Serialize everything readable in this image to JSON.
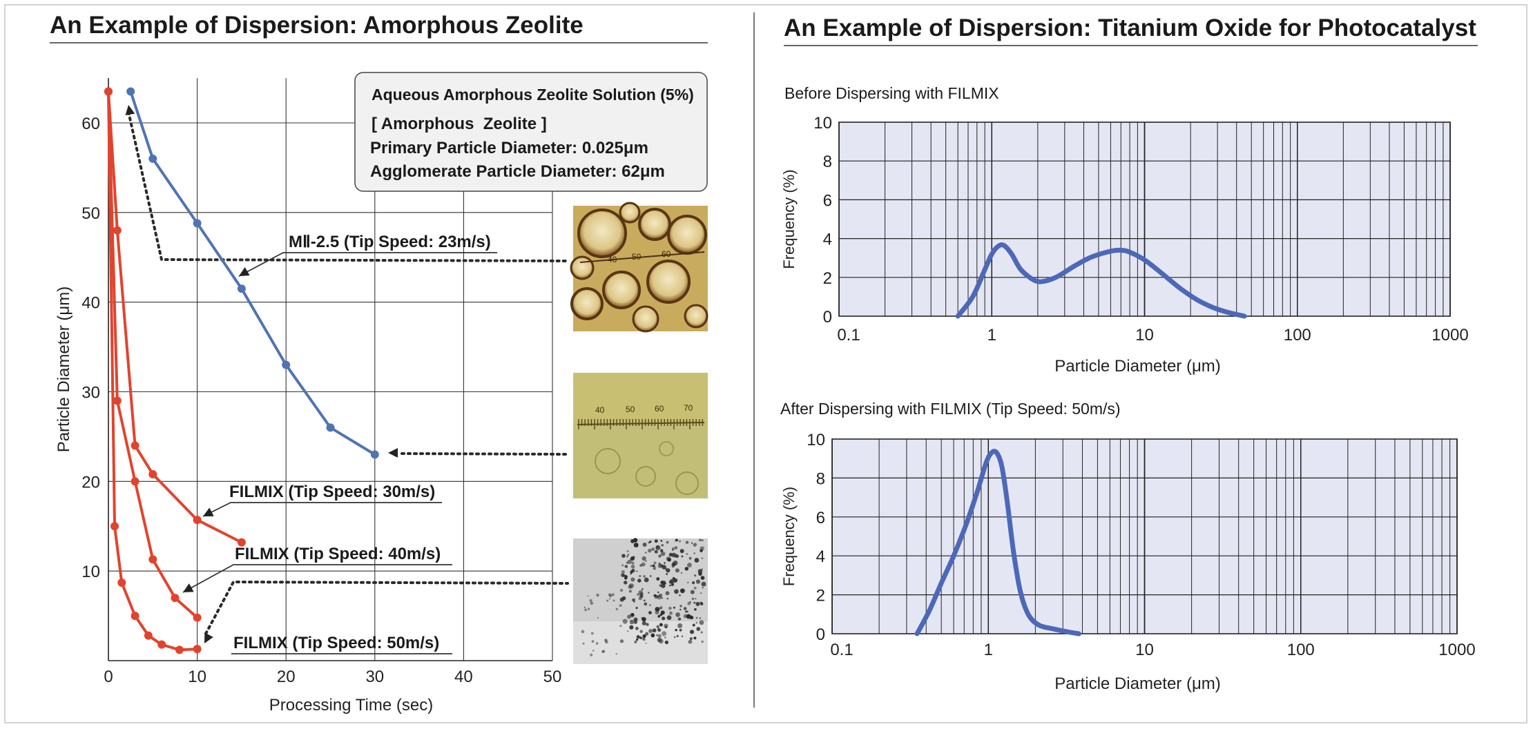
{
  "left": {
    "title": "An Example of Dispersion: Amorphous Zeolite",
    "info_box": {
      "heading": "Aqueous Amorphous Zeolite Solution (5%)",
      "material": "[ Amorphous  Zeolite ]",
      "primary": "Primary Particle Diameter: 0.025μm",
      "agglomerate": "Agglomerate Particle Diameter: 62μm"
    },
    "photo_scale_1": [
      "40",
      "50",
      "60"
    ],
    "photo_scale_2": [
      "40",
      "50",
      "60",
      "70"
    ]
  },
  "right": {
    "title": "An Example of Dispersion: Titanium Oxide for Photocatalyst",
    "top_subtitle": "Before Dispersing with FILMIX",
    "bottom_subtitle": "After Dispersing with FILMIX (Tip Speed: 50m/s)"
  },
  "colors": {
    "blue": "#4f74b4",
    "red": "#e2432d",
    "curve": "#4d68b8",
    "plot_bg": "#e4e7f3",
    "grid": "#202020",
    "dots": "#2a2a2a"
  },
  "chart_data": [
    {
      "type": "line",
      "xlabel": "Processing Time (sec)",
      "ylabel": "Particle Diameter (μm)",
      "xlim": [
        0,
        50
      ],
      "ylim": [
        0,
        65
      ],
      "xticks": [
        0,
        10,
        20,
        30,
        40,
        50
      ],
      "yticks": [
        10,
        20,
        30,
        40,
        50,
        60
      ],
      "grid": true,
      "series": [
        {
          "name": "MⅡ-2.5 (Tip Speed: 23m/s)",
          "color": "#4f74b4",
          "x": [
            2.5,
            5,
            10,
            15,
            20,
            25,
            30
          ],
          "y": [
            63.5,
            56,
            48.8,
            41.5,
            33,
            26,
            23
          ]
        },
        {
          "name": "FILMIX (Tip Speed: 30m/s)",
          "color": "#e2432d",
          "x": [
            0,
            1,
            3,
            5,
            10,
            15
          ],
          "y": [
            63.5,
            48,
            24,
            20.8,
            15.7,
            13.2
          ]
        },
        {
          "name": "FILMIX (Tip Speed: 40m/s)",
          "color": "#e2432d",
          "x": [
            0,
            1,
            3,
            5,
            7.5,
            10
          ],
          "y": [
            63.5,
            29,
            20,
            11.3,
            7,
            4.8
          ]
        },
        {
          "name": "FILMIX (Tip Speed: 50m/s)",
          "color": "#e2432d",
          "x": [
            0,
            0.7,
            1.5,
            3,
            4.5,
            6,
            8,
            10
          ],
          "y": [
            63.5,
            15,
            8.7,
            5,
            2.8,
            1.8,
            1.2,
            1.3
          ]
        }
      ]
    },
    {
      "type": "line",
      "xlabel": "Particle Diameter (μm)",
      "ylabel": "Frequency (%)",
      "x_scale": "log",
      "xlim": [
        0.1,
        1000
      ],
      "ylim": [
        0,
        10
      ],
      "xticks": [
        "0.1",
        "1",
        "10",
        "100",
        "1000"
      ],
      "yticks": [
        "0",
        "2",
        "4",
        "6",
        "8",
        "10"
      ],
      "grid": true,
      "series": [
        {
          "x": [
            0.6,
            0.75,
            0.9,
            1.0,
            1.1,
            1.2,
            1.35,
            1.55,
            1.9,
            2.2,
            2.7,
            3.5,
            4.5,
            6,
            7,
            8,
            10,
            13,
            17,
            22,
            28,
            35,
            45
          ],
          "y": [
            0,
            1.0,
            2.4,
            3.2,
            3.6,
            3.65,
            3.2,
            2.4,
            1.85,
            1.8,
            2.05,
            2.6,
            3.05,
            3.35,
            3.4,
            3.3,
            2.9,
            2.2,
            1.45,
            0.85,
            0.45,
            0.2,
            0
          ]
        }
      ]
    },
    {
      "type": "line",
      "xlabel": "Particle Diameter (μm)",
      "ylabel": "Frequency (%)",
      "x_scale": "log",
      "xlim": [
        0.1,
        1000
      ],
      "ylim": [
        0,
        10
      ],
      "xticks": [
        "0.1",
        "1",
        "10",
        "100",
        "1000"
      ],
      "yticks": [
        "0",
        "2",
        "4",
        "6",
        "8",
        "10"
      ],
      "grid": true,
      "series": [
        {
          "x": [
            0.35,
            0.42,
            0.5,
            0.6,
            0.72,
            0.85,
            0.97,
            1.05,
            1.13,
            1.22,
            1.32,
            1.45,
            1.6,
            1.8,
            2.1,
            2.6,
            3.2,
            3.8
          ],
          "y": [
            0,
            1.2,
            2.6,
            4.0,
            5.6,
            7.3,
            8.8,
            9.3,
            9.3,
            8.6,
            6.8,
            4.2,
            2.2,
            1.0,
            0.45,
            0.25,
            0.1,
            0
          ]
        }
      ]
    }
  ]
}
